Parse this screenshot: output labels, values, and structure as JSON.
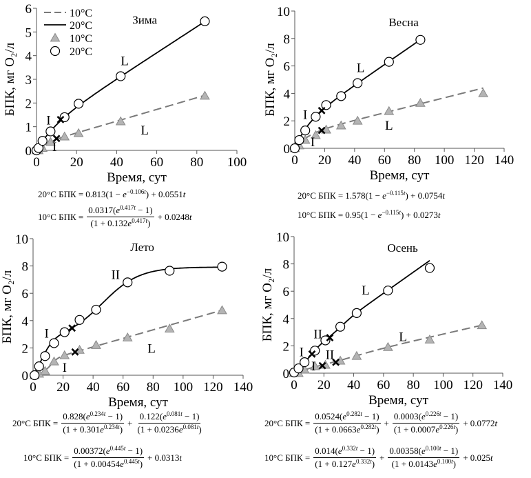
{
  "colors": {
    "line20": "#000000",
    "line10": "#7a7a7a",
    "triangle_fill": "#b4b4b4",
    "triangle_stroke": "#8a8a8a",
    "circle_fill": "#ffffff"
  },
  "legend": [
    {
      "kind": "dashed-line",
      "label": "10°C"
    },
    {
      "kind": "solid-line",
      "label": "20°C"
    },
    {
      "kind": "triangle",
      "label": "10°C"
    },
    {
      "kind": "circle",
      "label": "20°C"
    }
  ],
  "chart_data": [
    {
      "type": "line",
      "title": "Зима",
      "xlabel": "Время, сут",
      "ylabel": "БПК, мг O₂/л",
      "xlim": [
        0,
        100
      ],
      "ylim": [
        0,
        6
      ],
      "xticks": [
        0,
        20,
        40,
        60,
        80,
        100
      ],
      "yticks": [
        0,
        1,
        2,
        3,
        4,
        5,
        6
      ],
      "series": [
        {
          "name": "20°C",
          "points": [
            [
              0,
              0
            ],
            [
              1,
              0.1
            ],
            [
              3,
              0.4
            ],
            [
              7,
              0.8
            ],
            [
              14,
              1.4
            ],
            [
              21,
              1.97
            ],
            [
              42,
              3.13
            ],
            [
              84,
              5.45
            ]
          ],
          "model": {
            "terms": [
              {
                "type": "exp",
                "a": 0.813,
                "k": 0.106
              }
            ],
            "linear": 0.0551
          },
          "fit_range": [
            0,
            84
          ],
          "transitions": [
            [
              12,
              1.3
            ]
          ]
        },
        {
          "name": "10°C",
          "points": [
            [
              0,
              0
            ],
            [
              1,
              0
            ],
            [
              3,
              0.1
            ],
            [
              7,
              0.35
            ],
            [
              14,
              0.58
            ],
            [
              21,
              0.72
            ],
            [
              42,
              1.22
            ],
            [
              84,
              2.3
            ]
          ],
          "model": {
            "terms": [
              {
                "type": "logistic",
                "a": 0.0317,
                "k": 0.417,
                "c": 0.132
              }
            ],
            "linear": 0.0248
          },
          "fit_range": [
            0,
            84
          ],
          "transitions": [
            [
              10,
              0.5
            ]
          ]
        }
      ],
      "annotations": [
        {
          "text": "I",
          "x": 6,
          "y": 1.3
        },
        {
          "text": "I",
          "x": 9,
          "y": 0.17
        },
        {
          "text": "L",
          "x": 44,
          "y": 3.8
        },
        {
          "text": "L",
          "x": 54,
          "y": 0.87
        }
      ],
      "equations": [
        {
          "label": "20°C БПК =",
          "terms": [
            {
              "type": "text",
              "text": "0.813(1 − e^{−0.106t}) + 0.0551t"
            }
          ]
        },
        {
          "label": "10°C БПК =",
          "terms": [
            {
              "type": "frac",
              "num": "0.0317(e^{0.417t} − 1)",
              "den": "(1 + 0.132e^{0.417t})"
            },
            {
              "type": "text",
              "text": "+ 0.0248t"
            }
          ]
        }
      ]
    },
    {
      "type": "line",
      "title": "Весна",
      "xlabel": "Время, сут",
      "ylabel": "БПК, мг O₂/л",
      "xlim": [
        0,
        140
      ],
      "ylim": [
        0,
        10
      ],
      "xticks": [
        0,
        20,
        40,
        60,
        80,
        100,
        120,
        140
      ],
      "yticks": [
        0,
        2,
        4,
        6,
        8,
        10
      ],
      "series": [
        {
          "name": "20°C",
          "points": [
            [
              0,
              0
            ],
            [
              3,
              0.6
            ],
            [
              7,
              1.3
            ],
            [
              14,
              2.3
            ],
            [
              21,
              3.15
            ],
            [
              31,
              3.8
            ],
            [
              42,
              4.75
            ],
            [
              63,
              6.3
            ],
            [
              84,
              7.9
            ]
          ],
          "model": {
            "terms": [
              {
                "type": "exp",
                "a": 1.578,
                "k": 0.115
              }
            ],
            "linear": 0.0754
          },
          "fit_range": [
            0,
            84
          ],
          "transitions": [
            [
              18,
              2.75
            ]
          ]
        },
        {
          "name": "10°C",
          "points": [
            [
              0,
              0
            ],
            [
              3,
              0.2
            ],
            [
              7,
              0.6
            ],
            [
              14,
              0.95
            ],
            [
              21,
              1.35
            ],
            [
              31,
              1.65
            ],
            [
              42,
              2.0
            ],
            [
              63,
              2.7
            ],
            [
              84,
              3.3
            ],
            [
              126,
              4.0
            ]
          ],
          "model": {
            "terms": [
              {
                "type": "exp",
                "a": 0.95,
                "k": 0.115
              }
            ],
            "linear": 0.0273
          },
          "fit_range": [
            0,
            126
          ],
          "transitions": [
            [
              18,
              1.3
            ]
          ]
        }
      ],
      "annotations": [
        {
          "text": "I",
          "x": 7,
          "y": 2.5
        },
        {
          "text": "I",
          "x": 12,
          "y": 0.5
        },
        {
          "text": "L",
          "x": 44,
          "y": 5.9
        },
        {
          "text": "L",
          "x": 63,
          "y": 1.7
        }
      ],
      "equations": [
        {
          "label": "20°C БПК =",
          "terms": [
            {
              "type": "text",
              "text": "1.578(1 − e^{−0.115t}) + 0.0754t"
            }
          ]
        },
        {
          "label": "10°C БПК =",
          "terms": [
            {
              "type": "text",
              "text": "0.95(1 − e^{−0.115t}) + 0.0273t"
            }
          ]
        }
      ]
    },
    {
      "type": "line",
      "title": "Лето",
      "xlabel": "Время, сут",
      "ylabel": "БПК, мг O₂/л",
      "xlim": [
        0,
        140
      ],
      "ylim": [
        0,
        10
      ],
      "xticks": [
        0,
        20,
        40,
        60,
        80,
        100,
        120,
        140
      ],
      "yticks": [
        0,
        2,
        4,
        6,
        8,
        10
      ],
      "series": [
        {
          "name": "20°C",
          "points": [
            [
              1,
              0
            ],
            [
              4,
              0.65
            ],
            [
              8,
              1.4
            ],
            [
              14,
              2.35
            ],
            [
              21,
              3.15
            ],
            [
              31,
              4.05
            ],
            [
              42,
              4.8
            ],
            [
              63,
              6.8
            ],
            [
              91,
              7.65
            ],
            [
              126,
              7.95
            ]
          ],
          "model": {
            "terms": [
              {
                "type": "logistic",
                "a": 0.828,
                "k": 0.234,
                "c": 0.301
              },
              {
                "type": "logistic",
                "a": 0.122,
                "k": 0.081,
                "c": 0.0236
              }
            ],
            "linear": 0
          },
          "fit_range": [
            0,
            126
          ],
          "transitions": [
            [
              26,
              3.45
            ]
          ]
        },
        {
          "name": "10°C",
          "points": [
            [
              1,
              0
            ],
            [
              4,
              0.1
            ],
            [
              8,
              0.3
            ],
            [
              14,
              1.0
            ],
            [
              21,
              1.45
            ],
            [
              31,
              1.85
            ],
            [
              42,
              2.2
            ],
            [
              63,
              2.75
            ],
            [
              91,
              3.4
            ],
            [
              126,
              4.75
            ]
          ],
          "model": {
            "terms": [
              {
                "type": "logistic",
                "a": 0.00372,
                "k": 0.445,
                "c": 0.00454
              }
            ],
            "linear": 0.0313
          },
          "fit_range": [
            0,
            126
          ],
          "transitions": [
            [
              28,
              1.7
            ]
          ]
        }
      ],
      "annotations": [
        {
          "text": "I",
          "x": 9,
          "y": 3.1
        },
        {
          "text": "I",
          "x": 21,
          "y": 0.6
        },
        {
          "text": "II",
          "x": 55,
          "y": 7.4
        },
        {
          "text": "L",
          "x": 79,
          "y": 2.0
        }
      ],
      "equations": [
        {
          "label": "20°C БПК =",
          "terms": [
            {
              "type": "frac",
              "num": "0.828(e^{0.234t} − 1)",
              "den": "(1 + 0.301e^{0.234t})"
            },
            {
              "type": "text",
              "text": "+"
            },
            {
              "type": "frac",
              "num": "0.122(e^{0.081t} − 1)",
              "den": "(1 + 0.0236e^{0.081t})"
            }
          ]
        },
        {
          "label": "10°C БПК =",
          "terms": [
            {
              "type": "frac",
              "num": "0.00372(e^{0.445t} − 1)",
              "den": "(1 + 0.00454e^{0.445t})"
            },
            {
              "type": "text",
              "text": "+ 0.0313t"
            }
          ]
        }
      ]
    },
    {
      "type": "line",
      "title": "Осень",
      "xlabel": "Время, сут",
      "ylabel": "БПК, мг O₂/л",
      "xlim": [
        0,
        140
      ],
      "ylim": [
        0,
        10
      ],
      "xticks": [
        0,
        20,
        40,
        60,
        80,
        100,
        120,
        140
      ],
      "yticks": [
        0,
        2,
        4,
        6,
        8,
        10
      ],
      "series": [
        {
          "name": "20°C",
          "points": [
            [
              0,
              0.05
            ],
            [
              3,
              0.35
            ],
            [
              7,
              0.8
            ],
            [
              14,
              1.65
            ],
            [
              21,
              2.4
            ],
            [
              31,
              3.4
            ],
            [
              42,
              4.4
            ],
            [
              63,
              6.05
            ],
            [
              91,
              7.7
            ]
          ],
          "model": {
            "terms": [
              {
                "type": "logistic",
                "a": 0.0524,
                "k": 0.282,
                "c": 0.0663
              },
              {
                "type": "logistic",
                "a": 0.0003,
                "k": 0.226,
                "c": 0.0007
              }
            ],
            "linear": 0.0772
          },
          "fit_range": [
            0,
            91
          ],
          "transitions": [
            [
              12,
              1.4
            ],
            [
              24,
              2.6
            ]
          ]
        },
        {
          "name": "10°C",
          "points": [
            [
              0,
              0
            ],
            [
              3,
              0
            ],
            [
              7,
              0.25
            ],
            [
              14,
              0.5
            ],
            [
              21,
              0.6
            ],
            [
              31,
              0.9
            ],
            [
              42,
              1.25
            ],
            [
              63,
              1.9
            ],
            [
              91,
              2.45
            ],
            [
              126,
              3.5
            ]
          ],
          "model": {
            "terms": [
              {
                "type": "logistic",
                "a": 0.014,
                "k": 0.332,
                "c": 0.127
              },
              {
                "type": "logistic",
                "a": 0.00358,
                "k": 0.1,
                "c": 0.0143
              }
            ],
            "linear": 0.025
          },
          "fit_range": [
            0,
            126
          ],
          "transitions": [
            [
              19,
              0.55
            ],
            [
              28,
              0.8
            ]
          ]
        }
      ],
      "annotations": [
        {
          "text": "I",
          "x": 5,
          "y": 1.6
        },
        {
          "text": "II",
          "x": 16,
          "y": 2.9
        },
        {
          "text": "I",
          "x": 13,
          "y": 0.55
        },
        {
          "text": "II",
          "x": 24,
          "y": 1.4
        },
        {
          "text": "L",
          "x": 48,
          "y": 6.1
        },
        {
          "text": "L",
          "x": 73,
          "y": 2.7
        }
      ],
      "equations": [
        {
          "label": "20°C БПК =",
          "terms": [
            {
              "type": "frac",
              "num": "0.0524(e^{0.282t} − 1)",
              "den": "(1 + 0.0663e^{0.282t})"
            },
            {
              "type": "text",
              "text": "+"
            },
            {
              "type": "frac",
              "num": "0.0003(e^{0.226t} − 1)",
              "den": "(1 + 0.0007e^{0.226t})"
            },
            {
              "type": "text",
              "text": "+ 0.0772t"
            }
          ]
        },
        {
          "label": "10°C БПК =",
          "terms": [
            {
              "type": "frac",
              "num": "0.014(e^{0.332t} − 1)",
              "den": "(1 + 0.127e^{0.332t})"
            },
            {
              "type": "text",
              "text": "+"
            },
            {
              "type": "frac",
              "num": "0.00358(e^{0.100t} − 1)",
              "den": "(1 + 0.0143e^{0.100t})"
            },
            {
              "type": "text",
              "text": "+ 0.025t"
            }
          ]
        }
      ]
    }
  ]
}
